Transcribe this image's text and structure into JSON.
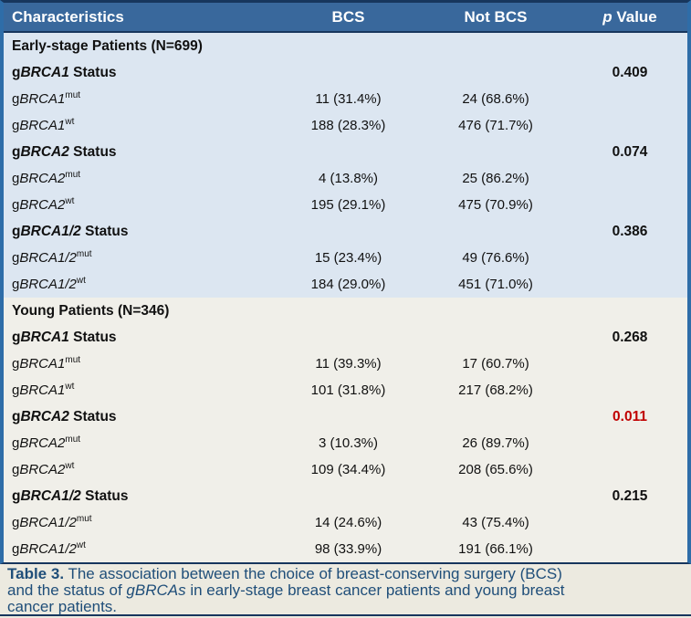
{
  "header": {
    "characteristics": "Characteristics",
    "bcs": "BCS",
    "not_bcs": "Not BCS",
    "p_italic": "p",
    "p_rest": " Value"
  },
  "colors": {
    "header_bg": "#39689C",
    "outer_border_blue": "#2E6DA8",
    "rule_navy": "#17365D",
    "early_section_bg": "#DCE6F1",
    "young_section_bg": "#F0EFE9",
    "caption_bg": "#ECEAE0",
    "caption_text": "#1F4E79",
    "significant_p_color": "#C00000"
  },
  "sections": [
    {
      "title": "Early-stage Patients (N=699)",
      "groups": [
        {
          "status": {
            "prefix": "g",
            "gene": "BRCA1",
            "suffix": " Status"
          },
          "p_value": "0.409",
          "rows": [
            {
              "prefix": "g",
              "gene": "BRCA1",
              "sup": "mut",
              "bcs": "11 (31.4%)",
              "not_bcs": "24 (68.6%)"
            },
            {
              "prefix": "g",
              "gene": "BRCA1",
              "sup": "wt",
              "bcs": "188 (28.3%)",
              "not_bcs": "476 (71.7%)"
            }
          ]
        },
        {
          "status": {
            "prefix": "g",
            "gene": "BRCA2",
            "suffix": " Status"
          },
          "p_value": "0.074",
          "rows": [
            {
              "prefix": "g",
              "gene": "BRCA2",
              "sup": "mut",
              "bcs": "4 (13.8%)",
              "not_bcs": "25 (86.2%)"
            },
            {
              "prefix": "g",
              "gene": "BRCA2",
              "sup": "wt",
              "bcs": "195 (29.1%)",
              "not_bcs": "475 (70.9%)"
            }
          ]
        },
        {
          "status": {
            "prefix": "g",
            "gene": "BRCA1/2",
            "suffix": " Status"
          },
          "p_value": "0.386",
          "rows": [
            {
              "prefix": "g",
              "gene": "BRCA1/2",
              "sup": "mut",
              "bcs": "15 (23.4%)",
              "not_bcs": "49 (76.6%)"
            },
            {
              "prefix": "g",
              "gene": "BRCA1/2",
              "sup": "wt",
              "bcs": "184 (29.0%)",
              "not_bcs": "451 (71.0%)"
            }
          ]
        }
      ]
    },
    {
      "title": "Young Patients (N=346)",
      "groups": [
        {
          "status": {
            "prefix": "g",
            "gene": "BRCA1",
            "suffix": " Status"
          },
          "p_value": "0.268",
          "rows": [
            {
              "prefix": "g",
              "gene": "BRCA1",
              "sup": "mut",
              "bcs": "11 (39.3%)",
              "not_bcs": "17 (60.7%)"
            },
            {
              "prefix": "g",
              "gene": "BRCA1",
              "sup": "wt",
              "bcs": "101 (31.8%)",
              "not_bcs": "217 (68.2%)"
            }
          ]
        },
        {
          "status": {
            "prefix": "g",
            "gene": "BRCA2",
            "suffix": " Status"
          },
          "p_value": "0.011",
          "significant": true,
          "rows": [
            {
              "prefix": "g",
              "gene": "BRCA2",
              "sup": "mut",
              "bcs": "3 (10.3%)",
              "not_bcs": "26 (89.7%)"
            },
            {
              "prefix": "g",
              "gene": "BRCA2",
              "sup": "wt",
              "bcs": "109 (34.4%)",
              "not_bcs": "208 (65.6%)"
            }
          ]
        },
        {
          "status": {
            "prefix": "g",
            "gene": "BRCA1/2",
            "suffix": " Status"
          },
          "p_value": "0.215",
          "rows": [
            {
              "prefix": "g",
              "gene": "BRCA1/2",
              "sup": "mut",
              "bcs": "14 (24.6%)",
              "not_bcs": "43 (75.4%)"
            },
            {
              "prefix": "g",
              "gene": "BRCA1/2",
              "sup": "wt",
              "bcs": "98 (33.9%)",
              "not_bcs": "191 (66.1%)"
            }
          ]
        }
      ]
    }
  ],
  "caption": {
    "line1": {
      "label": "Table 3.",
      "rest": " The association between the choice of breast-conserving surgery (BCS)"
    },
    "line2": {
      "before": "and the status of ",
      "gene": "gBRCAs",
      "after": " in early-stage breast cancer patients and young breast"
    },
    "line3": "cancer patients."
  }
}
